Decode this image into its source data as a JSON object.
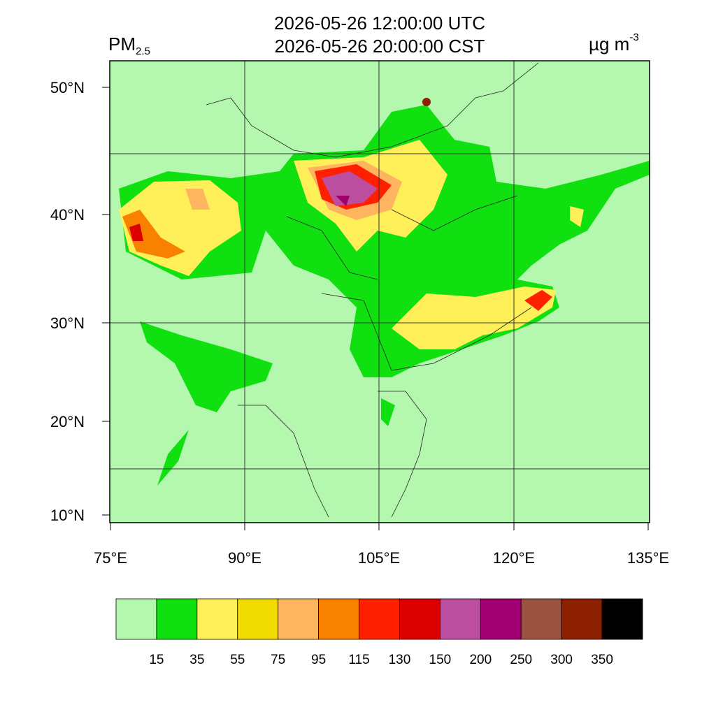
{
  "title": [
    "2026-05-26 12:00:00 UTC",
    "2026-05-26 20:00:00 CST"
  ],
  "variable": "PM",
  "variable_sub": "2.5",
  "units": "µg m",
  "units_sup": "-3",
  "lat_labels": [
    "50°N",
    "40°N",
    "30°N",
    "20°N",
    "10°N"
  ],
  "lon_labels": [
    "75°E",
    "90°E",
    "105°E",
    "120°E",
    "135°E"
  ],
  "colorbar": {
    "colors": [
      "#b4f8b0",
      "#10e010",
      "#fff05a",
      "#f0dc00",
      "#ffb460",
      "#f88200",
      "#ff2000",
      "#dc0000",
      "#bc4ea0",
      "#a00070",
      "#9c5240",
      "#8c2000",
      "#000000"
    ],
    "labels": [
      15,
      35,
      55,
      75,
      95,
      115,
      130,
      150,
      200,
      250,
      300,
      350
    ]
  }
}
